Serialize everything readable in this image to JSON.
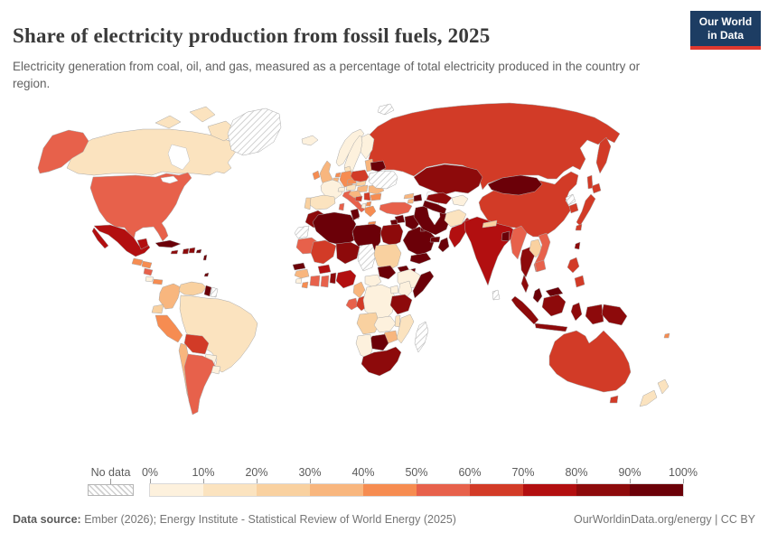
{
  "header": {
    "title": "Share of electricity production from fossil fuels, 2025",
    "subtitle": "Electricity generation from coal, oil, and gas, measured as a percentage of total electricity produced in the country or region.",
    "logo": {
      "line1": "Our World",
      "line2": "in Data",
      "bg_color": "#1d3d63",
      "accent_color": "#e0392f"
    }
  },
  "legend": {
    "no_data_label": "No data",
    "tick_labels": [
      "0%",
      "10%",
      "20%",
      "30%",
      "40%",
      "50%",
      "60%",
      "70%",
      "80%",
      "90%",
      "100%"
    ]
  },
  "footer": {
    "source_label": "Data source:",
    "source_text": " Ember (2026); Energy Institute - Statistical Review of World Energy (2025)",
    "credit": "OurWorldinData.org/energy | CC BY"
  },
  "chart_data": {
    "type": "choropleth",
    "title": "Share of electricity production from fossil fuels, 2025",
    "unit": "% of total electricity produced",
    "bin_edges": [
      0,
      10,
      20,
      30,
      40,
      50,
      60,
      70,
      80,
      90,
      100
    ],
    "colors": [
      "#fdf1dd",
      "#fbe3bf",
      "#f9d1a0",
      "#f8b67e",
      "#f68c51",
      "#e7614b",
      "#d23b27",
      "#b20f10",
      "#8d0a0b",
      "#6b0008"
    ],
    "no_data_style": "hatched",
    "values": {
      "Canada": 18,
      "United States": 56,
      "Mexico": 77,
      "Guatemala": 40,
      "Honduras": 45,
      "Nicaragua": 52,
      "Costa Rica": 2,
      "Panama": 42,
      "Cuba": 95,
      "Jamaica": 87,
      "Haiti": 81,
      "Dominican Republic": 88,
      "Puerto Rico": 94,
      "Barbados": 92,
      "Trinidad and Tobago": 99,
      "Colombia": 32,
      "Venezuela": 24,
      "Guyana": 96,
      "Suriname": null,
      "Ecuador": 27,
      "Peru": 42,
      "Brazil": 13,
      "Bolivia": 68,
      "Paraguay": 2,
      "Chile": 35,
      "Argentina": 57,
      "Uruguay": 6,
      "Greenland": null,
      "Iceland": 0,
      "Norway": 1,
      "Sweden": 1,
      "Finland": 8,
      "Denmark": 15,
      "United Kingdom": 31,
      "Ireland": 44,
      "Netherlands": 46,
      "Belgium": 34,
      "France": 6,
      "Spain": 17,
      "Portugal": 24,
      "Germany": 44,
      "Switzerland": 2,
      "Austria": 14,
      "Czechia": 42,
      "Slovakia": 22,
      "Hungary": 33,
      "Poland": 63,
      "Italy": 53,
      "Croatia": 33,
      "Bosnia and Herzegovina": 62,
      "Serbia": 64,
      "Albania": 2,
      "North Macedonia": 45,
      "Greece": 47,
      "Romania": 37,
      "Bulgaria": 42,
      "Moldova": 92,
      "Belarus": 97,
      "Lithuania": 30,
      "Ukraine": null,
      "Svalbard": null,
      "Russia": 64,
      "Kazakhstan": 86,
      "Uzbekistan": 89,
      "Turkmenistan": 100,
      "Kyrgyzstan": 7,
      "Georgia": 31,
      "Azerbaijan": 94,
      "Armenia": 35,
      "Turkey": 55,
      "Syria": 94,
      "Israel": 96,
      "Iraq": 98,
      "Saudi Arabia": 99,
      "Kuwait": 100,
      "United Arab Emirates": 100,
      "Oman": 97,
      "Yemen": 95,
      "Iran": 94,
      "Afghanistan": 18,
      "Pakistan": 75,
      "India": 74,
      "Nepal": 20,
      "Bangladesh": 98,
      "Sri Lanka": null,
      "Myanmar": 55,
      "Thailand": 88,
      "Laos": 20,
      "Vietnam": 55,
      "Cambodia": 55,
      "Malaysia": 95,
      "Indonesia": 85,
      "Papua New Guinea": 82,
      "Philippines": 68,
      "Taiwan": 80,
      "China": 66,
      "Mongolia": 95,
      "North Korea": null,
      "South Korea": 62,
      "Japan": 65,
      "Morocco": 88,
      "Western Sahara": null,
      "Algeria": 99,
      "Tunisia": 97,
      "Libya": 99,
      "Egypt": 88,
      "Mauritania": 56,
      "Senegal": 92,
      "Mali": 65,
      "Niger": 85,
      "Chad": null,
      "Sudan": 28,
      "Eritrea": 99,
      "Djibouti": 95,
      "Ethiopia": 1,
      "Somalia": 95,
      "South Sudan": 95,
      "Guinea": 35,
      "Sierra Leone": 5,
      "Liberia": 45,
      "Cote d'Ivoire": 58,
      "Ghana": 55,
      "Burkina Faso": 75,
      "Benin": 85,
      "Nigeria": 75,
      "Cameroon": 35,
      "Central African Republic": 2,
      "Gabon": 52,
      "Congo": 60,
      "Democratic Republic of Congo": 2,
      "Uganda": 2,
      "Kenya": 8,
      "Tanzania": 80,
      "Angola": 22,
      "Zambia": 5,
      "Malawi": 10,
      "Mozambique": 15,
      "Zimbabwe": 35,
      "Botswana": 99,
      "Namibia": 5,
      "South Africa": 85,
      "Madagascar": null,
      "Australia": 65,
      "New Zealand": 12,
      "Fiji": 48
    }
  }
}
